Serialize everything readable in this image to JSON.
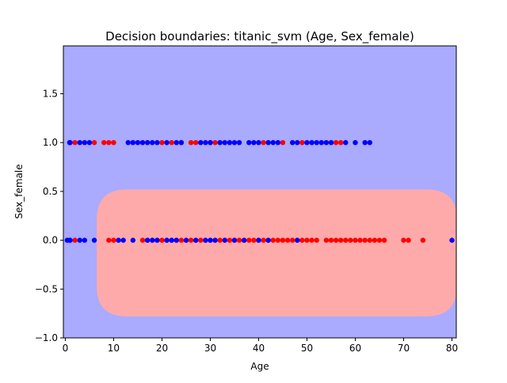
{
  "chart_data": {
    "type": "scatter",
    "title": "Decision boundaries: titanic_svm (Age, Sex_female)",
    "xlabel": "Age",
    "ylabel": "Sex_female",
    "xlim": [
      -0.4,
      80.9
    ],
    "ylim": [
      -1.0,
      1.99
    ],
    "xticks": [
      0,
      10,
      20,
      30,
      40,
      50,
      60,
      70,
      80
    ],
    "yticks": [
      -1.0,
      -0.5,
      0.0,
      0.5,
      1.0,
      1.5
    ],
    "xtick_labels": [
      "0",
      "10",
      "20",
      "30",
      "40",
      "50",
      "60",
      "70",
      "80"
    ],
    "ytick_labels": [
      "−1.0",
      "−0.5",
      "0.0",
      "0.5",
      "1.0",
      "1.5"
    ],
    "grid": false,
    "background_region": {
      "class": 1,
      "color": "#aaaaff"
    },
    "decision_region": {
      "class": 0,
      "color": "#ffaaaa",
      "x_range": [
        6.5,
        81
      ],
      "y_range": [
        -0.78,
        0.52
      ],
      "shape": "rounded-band"
    },
    "series": [
      {
        "color": "#ff0000",
        "points": [
          [
            2,
            1
          ],
          [
            6,
            1
          ],
          [
            8,
            1
          ],
          [
            9,
            1
          ],
          [
            10,
            1
          ],
          [
            20,
            1
          ],
          [
            22,
            1
          ],
          [
            24,
            1
          ],
          [
            26,
            1
          ],
          [
            27,
            1
          ],
          [
            30,
            1
          ],
          [
            31,
            1
          ],
          [
            41,
            1
          ],
          [
            45,
            1
          ],
          [
            49,
            1
          ],
          [
            56,
            1
          ],
          [
            57,
            1
          ],
          [
            2,
            0
          ],
          [
            9,
            0
          ],
          [
            10,
            0
          ],
          [
            16,
            0
          ],
          [
            17,
            0
          ],
          [
            18,
            0
          ],
          [
            19,
            0
          ],
          [
            20,
            0
          ],
          [
            21,
            0
          ],
          [
            22,
            0
          ],
          [
            23,
            0
          ],
          [
            24,
            0
          ],
          [
            25,
            0
          ],
          [
            26,
            0
          ],
          [
            27,
            0
          ],
          [
            28,
            0
          ],
          [
            29,
            0
          ],
          [
            30,
            0
          ],
          [
            31,
            0
          ],
          [
            32,
            0
          ],
          [
            33,
            0
          ],
          [
            34,
            0
          ],
          [
            35,
            0
          ],
          [
            36,
            0
          ],
          [
            37,
            0
          ],
          [
            38,
            0
          ],
          [
            39,
            0
          ],
          [
            40,
            0
          ],
          [
            41,
            0
          ],
          [
            42,
            0
          ],
          [
            43,
            0
          ],
          [
            44,
            0
          ],
          [
            45,
            0
          ],
          [
            46,
            0
          ],
          [
            47,
            0
          ],
          [
            48,
            0
          ],
          [
            49,
            0
          ],
          [
            50,
            0
          ],
          [
            51,
            0
          ],
          [
            52,
            0
          ],
          [
            54,
            0
          ],
          [
            55,
            0
          ],
          [
            56,
            0
          ],
          [
            57,
            0
          ],
          [
            58,
            0
          ],
          [
            59,
            0
          ],
          [
            60,
            0
          ],
          [
            61,
            0
          ],
          [
            62,
            0
          ],
          [
            63,
            0
          ],
          [
            64,
            0
          ],
          [
            65,
            0
          ],
          [
            66,
            0
          ],
          [
            70,
            0
          ],
          [
            71,
            0
          ],
          [
            74,
            0
          ]
        ]
      },
      {
        "color": "#0000ff",
        "points": [
          [
            0.9,
            1
          ],
          [
            1,
            1
          ],
          [
            3,
            1
          ],
          [
            4,
            1
          ],
          [
            5,
            1
          ],
          [
            13,
            1
          ],
          [
            14,
            1
          ],
          [
            15,
            1
          ],
          [
            16,
            1
          ],
          [
            17,
            1
          ],
          [
            18,
            1
          ],
          [
            19,
            1
          ],
          [
            21,
            1
          ],
          [
            23,
            1
          ],
          [
            24,
            1
          ],
          [
            28,
            1
          ],
          [
            29,
            1
          ],
          [
            30,
            1
          ],
          [
            32,
            1
          ],
          [
            33,
            1
          ],
          [
            34,
            1
          ],
          [
            35,
            1
          ],
          [
            36,
            1
          ],
          [
            38,
            1
          ],
          [
            39,
            1
          ],
          [
            40,
            1
          ],
          [
            42,
            1
          ],
          [
            43,
            1
          ],
          [
            44,
            1
          ],
          [
            47,
            1
          ],
          [
            48,
            1
          ],
          [
            50,
            1
          ],
          [
            51,
            1
          ],
          [
            52,
            1
          ],
          [
            53,
            1
          ],
          [
            54,
            1
          ],
          [
            55,
            1
          ],
          [
            58,
            1
          ],
          [
            60,
            1
          ],
          [
            62,
            1
          ],
          [
            63,
            1
          ],
          [
            0.4,
            0
          ],
          [
            0.9,
            0
          ],
          [
            1,
            0
          ],
          [
            3,
            0
          ],
          [
            4,
            0
          ],
          [
            6,
            0
          ],
          [
            11,
            0
          ],
          [
            12,
            0
          ],
          [
            14,
            0
          ],
          [
            17,
            0
          ],
          [
            18,
            0
          ],
          [
            19,
            0
          ],
          [
            21,
            0
          ],
          [
            22,
            0
          ],
          [
            23,
            0
          ],
          [
            25,
            0
          ],
          [
            27,
            0
          ],
          [
            29,
            0
          ],
          [
            30,
            0
          ],
          [
            31,
            0
          ],
          [
            33,
            0
          ],
          [
            35,
            0
          ],
          [
            37,
            0
          ],
          [
            40,
            0
          ],
          [
            42,
            0
          ],
          [
            48,
            0
          ],
          [
            80,
            0
          ]
        ]
      }
    ]
  }
}
